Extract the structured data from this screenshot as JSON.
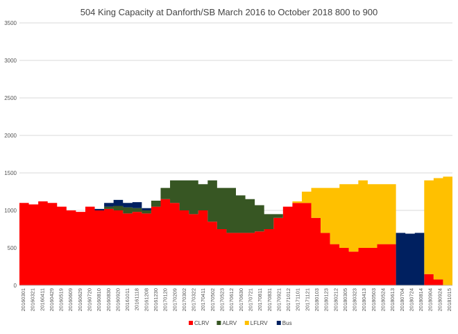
{
  "chart_data": {
    "type": "area",
    "stacked": true,
    "title": "504 King Capacity at Danforth/SB March 2016 to October 2018  800 to 900",
    "xlabel": "",
    "ylabel": "",
    "ylim": [
      0,
      3500
    ],
    "yticks": [
      0,
      500,
      1000,
      1500,
      2000,
      2500,
      3000,
      3500
    ],
    "grid": true,
    "legend_position": "bottom",
    "x_tick_labels": [
      "20160301",
      "20160321",
      "20160411",
      "20160429",
      "20160519",
      "20160609",
      "20160629",
      "20160720",
      "20160810",
      "20160830",
      "20160920",
      "20161011",
      "20161118",
      "20161208",
      "20161230",
      "20170120",
      "20170209",
      "20170302",
      "20170322",
      "20170411",
      "20170502",
      "20170523",
      "20170612",
      "20170630",
      "20170721",
      "20170811",
      "20170831",
      "20170921",
      "20171012",
      "20171101",
      "20171121",
      "20180103",
      "20180123",
      "20180212",
      "20180305",
      "20180323",
      "20180413",
      "20180503",
      "20180524",
      "20180613",
      "20180704",
      "20180724",
      "20180814",
      "20180904",
      "20180924",
      "20181015"
    ],
    "colors": {
      "CLRV": "#ff0000",
      "ALRV": "#375623",
      "LFLRV": "#ffc000",
      "Bus": "#002060"
    },
    "series": [
      {
        "name": "CLRV",
        "values": [
          1100,
          1080,
          1120,
          1100,
          1050,
          1000,
          980,
          1050,
          1000,
          1020,
          1000,
          960,
          980,
          960,
          1050,
          1150,
          1100,
          1000,
          950,
          1000,
          850,
          750,
          700,
          700,
          700,
          720,
          750,
          900,
          1050,
          1100,
          1100,
          900,
          700,
          550,
          500,
          450,
          500,
          500,
          550,
          550,
          0,
          0,
          0,
          150,
          80,
          0
        ]
      },
      {
        "name": "ALRV",
        "values": [
          0,
          0,
          0,
          0,
          0,
          0,
          0,
          0,
          0,
          30,
          60,
          80,
          50,
          40,
          80,
          150,
          300,
          400,
          450,
          350,
          550,
          550,
          600,
          500,
          450,
          350,
          200,
          50,
          0,
          0,
          0,
          0,
          0,
          0,
          0,
          0,
          0,
          0,
          0,
          0,
          0,
          0,
          0,
          0,
          0,
          0
        ]
      },
      {
        "name": "LFLRV",
        "values": [
          0,
          0,
          0,
          0,
          0,
          0,
          0,
          0,
          0,
          0,
          0,
          0,
          0,
          0,
          0,
          0,
          0,
          0,
          0,
          0,
          0,
          0,
          0,
          0,
          0,
          0,
          0,
          0,
          0,
          20,
          150,
          400,
          600,
          750,
          850,
          900,
          900,
          850,
          800,
          800,
          0,
          0,
          0,
          1250,
          1350,
          1450
        ]
      },
      {
        "name": "Bus",
        "values": [
          0,
          0,
          0,
          0,
          0,
          0,
          0,
          0,
          20,
          50,
          80,
          60,
          80,
          30,
          0,
          0,
          0,
          0,
          0,
          0,
          0,
          0,
          0,
          0,
          0,
          0,
          0,
          0,
          0,
          0,
          0,
          0,
          0,
          0,
          0,
          0,
          0,
          0,
          0,
          0,
          700,
          690,
          700,
          0,
          0,
          0
        ]
      }
    ]
  }
}
